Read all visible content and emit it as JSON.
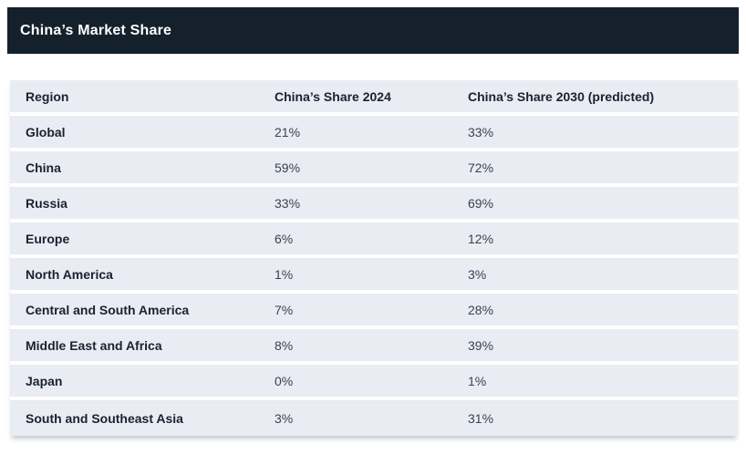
{
  "title_bar": {
    "title": "China’s Market Share"
  },
  "colors": {
    "title_bar_bg": "#14202c",
    "title_bar_text": "#ffffff",
    "row_bg": "#e9ecf3",
    "row_separator": "#ffffff",
    "header_text": "#1a2230",
    "value_text": "#3b434f",
    "page_bg": "#ffffff"
  },
  "chart_data": {
    "type": "table",
    "title": "China’s Market Share",
    "columns": [
      "Region",
      "China’s Share 2024",
      "China’s Share 2030 (predicted)"
    ],
    "rows": [
      [
        "Global",
        "21%",
        "33%"
      ],
      [
        "China",
        "59%",
        "72%"
      ],
      [
        "Russia",
        "33%",
        "69%"
      ],
      [
        "Europe",
        "6%",
        "12%"
      ],
      [
        "North America",
        "1%",
        "3%"
      ],
      [
        "Central and South America",
        "7%",
        "28%"
      ],
      [
        "Middle East and Africa",
        "8%",
        "39%"
      ],
      [
        "Japan",
        "0%",
        "1%"
      ],
      [
        "South and Southeast Asia",
        "3%",
        "31%"
      ]
    ],
    "rows_numeric": {
      "categories": [
        "Global",
        "China",
        "Russia",
        "Europe",
        "North America",
        "Central and South America",
        "Middle East and Africa",
        "Japan",
        "South and Southeast Asia"
      ],
      "series": [
        {
          "name": "China’s Share 2024",
          "values": [
            21,
            59,
            33,
            6,
            1,
            7,
            8,
            0,
            3
          ],
          "unit": "%"
        },
        {
          "name": "China’s Share 2030 (predicted)",
          "values": [
            33,
            72,
            69,
            12,
            3,
            28,
            39,
            1,
            31
          ],
          "unit": "%"
        }
      ]
    }
  }
}
